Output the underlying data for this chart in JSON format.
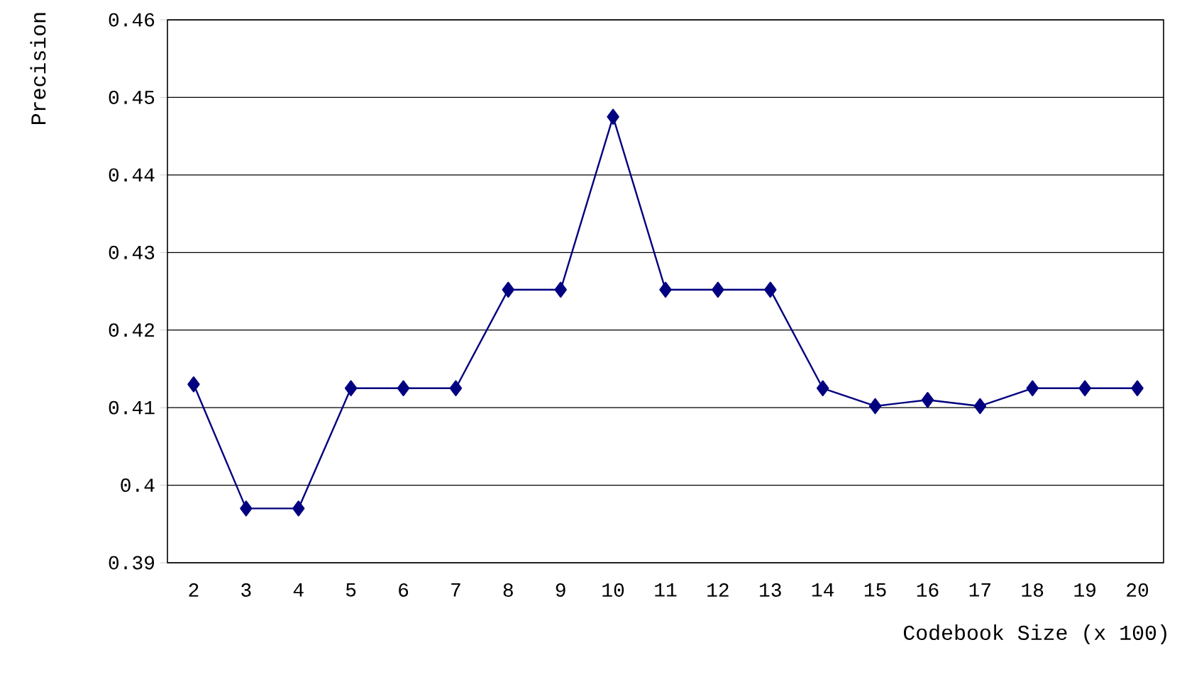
{
  "chart_data": {
    "type": "line",
    "xlabel": "Codebook Size (x 100)",
    "ylabel": "Precision",
    "categories": [
      "2",
      "3",
      "4",
      "5",
      "6",
      "7",
      "8",
      "9",
      "10",
      "11",
      "12",
      "13",
      "14",
      "15",
      "16",
      "17",
      "18",
      "19",
      "20"
    ],
    "series": [
      {
        "color": "#000080",
        "values": [
          0.413,
          0.397,
          0.397,
          0.4125,
          0.4125,
          0.4125,
          0.4252,
          0.4252,
          0.4475,
          0.4252,
          0.4252,
          0.4252,
          0.4125,
          0.4102,
          0.411,
          0.4102,
          0.4125,
          0.4125,
          0.4125
        ]
      }
    ],
    "ylim": [
      0.39,
      0.46
    ],
    "yticks": [
      0.39,
      0.4,
      0.41,
      0.42,
      0.43,
      0.44,
      0.45,
      0.46
    ],
    "grid": "y",
    "marker": "diamond",
    "line_style": "solid"
  }
}
